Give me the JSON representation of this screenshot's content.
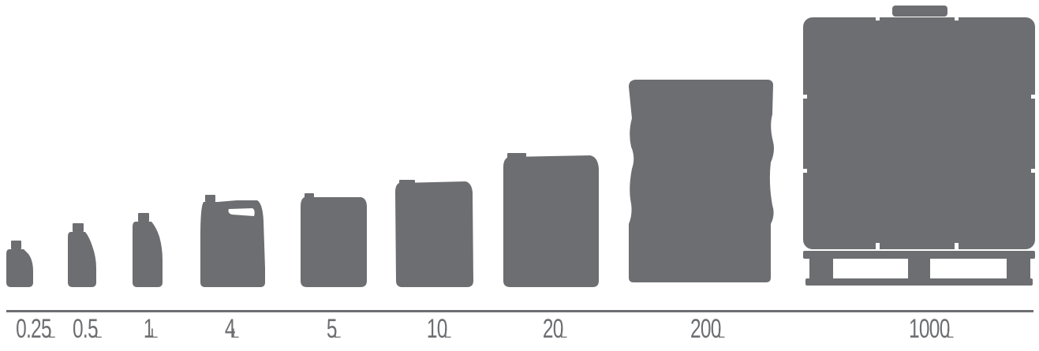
{
  "colors": {
    "silhouette": "#6d6e71",
    "baseline": "#6d6e71",
    "text": "#6d6e71",
    "background": "#ffffff"
  },
  "containers": [
    {
      "capacity": "0.25",
      "unit": "L",
      "icon": "small-bottle-icon"
    },
    {
      "capacity": "0.5",
      "unit": "L",
      "icon": "small-bottle-icon"
    },
    {
      "capacity": "1",
      "unit": "L",
      "icon": "bottle-icon"
    },
    {
      "capacity": "4",
      "unit": "L",
      "icon": "canister-with-handle-icon"
    },
    {
      "capacity": "5",
      "unit": "L",
      "icon": "jerrycan-icon"
    },
    {
      "capacity": "10",
      "unit": "L",
      "icon": "jerrycan-icon"
    },
    {
      "capacity": "20",
      "unit": "L",
      "icon": "jerrycan-icon"
    },
    {
      "capacity": "200",
      "unit": "L",
      "icon": "drum-icon"
    },
    {
      "capacity": "1000",
      "unit": "L",
      "icon": "ibc-tote-on-pallet-icon"
    }
  ]
}
